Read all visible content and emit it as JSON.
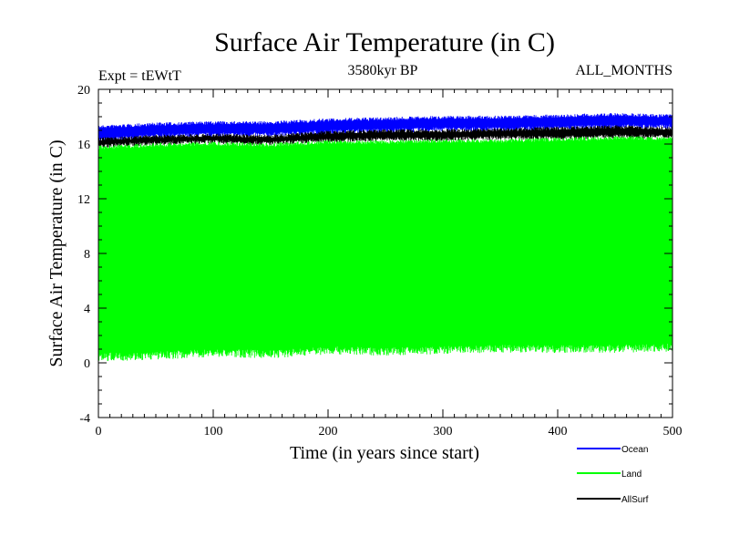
{
  "chart_data": {
    "type": "line",
    "title": "Surface Air Temperature (in C)",
    "subtitle_left": "Expt = tEWtT",
    "subtitle_center": "3580kyr BP",
    "subtitle_right": "ALL_MONTHS",
    "xlabel": "Time (in years since start)",
    "ylabel": "Surface Air Temperature (in C)",
    "xlim": [
      0,
      500
    ],
    "ylim": [
      -4,
      20
    ],
    "xticks": [
      0,
      100,
      200,
      300,
      400,
      500
    ],
    "yticks": [
      -4,
      0,
      4,
      8,
      12,
      16,
      20
    ],
    "grid": false,
    "legend_position": "bottom-right",
    "series": [
      {
        "name": "Ocean",
        "color": "#0000ff",
        "shape": "monthly band",
        "x": [
          0,
          50,
          100,
          150,
          200,
          250,
          300,
          350,
          400,
          450,
          500
        ],
        "min": [
          16.2,
          16.5,
          16.6,
          16.6,
          16.8,
          16.9,
          17.0,
          17.0,
          17.1,
          17.2,
          17.2
        ],
        "max": [
          17.3,
          17.5,
          17.6,
          17.6,
          17.8,
          17.9,
          18.0,
          18.0,
          18.1,
          18.2,
          18.1
        ]
      },
      {
        "name": "Land",
        "color": "#00ff00",
        "shape": "monthly band",
        "x": [
          0,
          50,
          100,
          150,
          200,
          250,
          300,
          350,
          400,
          450,
          500
        ],
        "min": [
          0.3,
          0.4,
          0.6,
          0.5,
          0.8,
          0.7,
          0.8,
          0.9,
          0.9,
          0.9,
          1.0
        ],
        "max": [
          15.8,
          16.0,
          16.1,
          16.0,
          16.2,
          16.2,
          16.3,
          16.3,
          16.4,
          16.5,
          16.5
        ]
      },
      {
        "name": "AllSurf",
        "color": "#000000",
        "shape": "monthly band",
        "x": [
          0,
          50,
          100,
          150,
          200,
          250,
          300,
          350,
          400,
          450,
          500
        ],
        "min": [
          15.8,
          16.0,
          16.1,
          16.0,
          16.2,
          16.3,
          16.3,
          16.4,
          16.4,
          16.5,
          16.5
        ],
        "max": [
          16.4,
          16.6,
          16.7,
          16.6,
          16.9,
          17.0,
          17.0,
          17.1,
          17.2,
          17.3,
          17.2
        ]
      }
    ]
  }
}
